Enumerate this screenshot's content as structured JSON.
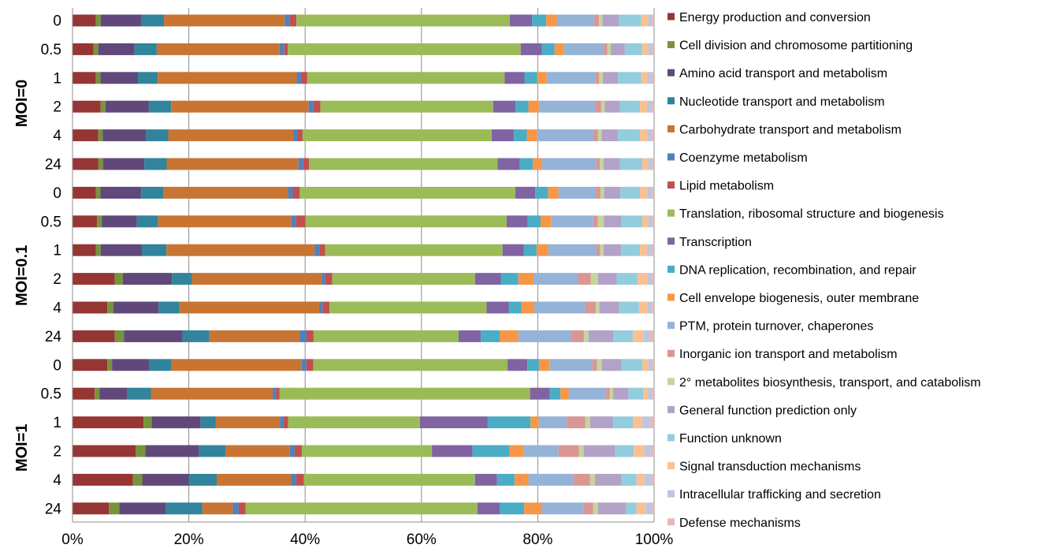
{
  "chart_data": {
    "type": "bar",
    "orientation": "horizontal",
    "stacked": true,
    "normalized": true,
    "xlim": [
      0,
      100
    ],
    "x_ticks": [
      "0%",
      "20%",
      "40%",
      "60%",
      "80%",
      "100%"
    ],
    "grid": "vertical",
    "legend_position": "right",
    "groups": [
      {
        "label": "MOI=0",
        "categories": [
          "0",
          "0.5",
          "1",
          "2",
          "4",
          "24"
        ]
      },
      {
        "label": "MOI=0.1",
        "categories": [
          "0",
          "0.5",
          "1",
          "2",
          "4",
          "24"
        ]
      },
      {
        "label": "MOI=1",
        "categories": [
          "0",
          "0.5",
          "1",
          "2",
          "4",
          "24"
        ]
      }
    ],
    "series": [
      {
        "name": "Energy production and conversion",
        "color": "#963634",
        "values": [
          4.0,
          3.6,
          4.0,
          4.8,
          4.4,
          4.4,
          4.0,
          4.2,
          4.0,
          7.2,
          6.0,
          7.2,
          6.0,
          3.8,
          12.2,
          10.6,
          10.4,
          6.2
        ]
      },
      {
        "name": "Cell division and chromosome partitioning",
        "color": "#77933C",
        "values": [
          0.8,
          0.8,
          0.8,
          0.8,
          0.8,
          0.8,
          0.8,
          0.8,
          0.8,
          1.4,
          1.0,
          1.6,
          0.8,
          0.8,
          1.4,
          1.6,
          1.6,
          1.8
        ]
      },
      {
        "name": "Amino acid transport and metabolism",
        "color": "#60497A",
        "values": [
          7.0,
          6.2,
          6.4,
          7.4,
          7.4,
          7.0,
          7.0,
          6.0,
          7.0,
          8.4,
          7.8,
          10.0,
          6.4,
          4.8,
          8.4,
          9.0,
          8.0,
          8.0
        ]
      },
      {
        "name": "Nucleotide transport and metabolism",
        "color": "#31849B",
        "values": [
          3.8,
          3.8,
          3.4,
          3.8,
          3.8,
          3.8,
          3.8,
          3.6,
          4.2,
          3.4,
          3.6,
          4.6,
          3.8,
          4.0,
          2.6,
          4.4,
          4.8,
          6.2
        ]
      },
      {
        "name": "Carbohydrate transport and metabolism",
        "color": "#C87533",
        "values": [
          20.6,
          21.0,
          23.8,
          23.4,
          21.4,
          22.4,
          21.4,
          22.8,
          25.2,
          22.2,
          24.0,
          15.4,
          22.4,
          20.8,
          11.0,
          10.8,
          12.8,
          5.2
        ]
      },
      {
        "name": "Coenzyme metabolism",
        "color": "#4F81BD",
        "values": [
          0.8,
          0.8,
          0.8,
          0.8,
          0.8,
          0.8,
          0.8,
          0.8,
          0.8,
          0.6,
          0.6,
          1.2,
          0.8,
          0.6,
          0.6,
          0.8,
          0.8,
          1.0
        ]
      },
      {
        "name": "Lipid metabolism",
        "color": "#C0504D",
        "values": [
          1.2,
          0.6,
          1.0,
          1.2,
          0.8,
          1.0,
          1.2,
          1.6,
          1.0,
          1.2,
          1.2,
          1.2,
          1.2,
          0.6,
          0.8,
          1.2,
          1.4,
          1.2
        ]
      },
      {
        "name": "Translation, ribosomal structure and biogenesis",
        "color": "#9BBB59",
        "values": [
          36.4,
          39.8,
          33.8,
          29.4,
          32.4,
          32.0,
          37.0,
          34.4,
          30.2,
          24.4,
          27.0,
          24.8,
          33.4,
          42.8,
          22.6,
          21.8,
          29.4,
          39.6
        ]
      },
      {
        "name": "Transcription",
        "color": "#8064A2",
        "values": [
          3.8,
          3.6,
          3.4,
          3.8,
          3.8,
          3.8,
          3.4,
          3.6,
          3.6,
          4.4,
          3.8,
          3.8,
          3.4,
          3.4,
          11.6,
          6.8,
          3.8,
          3.8
        ]
      },
      {
        "name": "DNA replication, recombination, and repair",
        "color": "#4BACC6",
        "values": [
          2.4,
          2.2,
          2.2,
          2.2,
          2.2,
          2.2,
          2.2,
          2.2,
          2.2,
          3.0,
          2.2,
          3.2,
          2.0,
          1.8,
          7.4,
          6.2,
          3.0,
          4.2
        ]
      },
      {
        "name": "Cell envelope biogenesis, outer membrane",
        "color": "#F79646",
        "values": [
          1.8,
          1.6,
          1.6,
          1.8,
          1.8,
          1.6,
          1.8,
          1.8,
          2.0,
          2.6,
          2.2,
          3.2,
          1.8,
          1.4,
          1.4,
          2.4,
          2.4,
          3.0
        ]
      },
      {
        "name": "PTM, protein turnover, chaperones",
        "color": "#95B3D7",
        "values": [
          6.4,
          6.8,
          8.4,
          9.6,
          9.6,
          9.2,
          6.4,
          7.2,
          8.2,
          7.6,
          8.8,
          9.0,
          7.4,
          6.4,
          4.8,
          5.8,
          7.8,
          7.2
        ]
      },
      {
        "name": "Inorganic ion transport and metabolism",
        "color": "#D99694",
        "values": [
          0.8,
          0.6,
          0.6,
          1.0,
          0.8,
          0.6,
          0.8,
          0.8,
          0.6,
          2.2,
          1.8,
          2.2,
          0.8,
          0.6,
          3.2,
          3.4,
          2.8,
          1.6
        ]
      },
      {
        "name": "2° metabolites biosynthesis, transport, and catabolism",
        "color": "#C3D69B",
        "values": [
          0.6,
          0.6,
          0.6,
          0.6,
          0.6,
          0.6,
          0.6,
          1.0,
          0.6,
          1.2,
          0.6,
          0.8,
          0.8,
          0.6,
          0.8,
          0.8,
          0.8,
          0.8
        ]
      },
      {
        "name": "General function prediction only",
        "color": "#B3A2C7",
        "values": [
          2.8,
          2.4,
          2.6,
          2.6,
          2.8,
          2.8,
          2.8,
          3.0,
          3.0,
          3.2,
          3.4,
          4.2,
          3.4,
          2.6,
          4.0,
          5.2,
          4.6,
          4.8
        ]
      },
      {
        "name": "Function unknown",
        "color": "#93CDDD",
        "values": [
          3.8,
          3.0,
          4.0,
          3.4,
          3.8,
          3.8,
          3.4,
          3.6,
          3.2,
          3.6,
          3.4,
          3.4,
          3.6,
          2.6,
          3.4,
          3.2,
          2.6,
          1.8
        ]
      },
      {
        "name": "Signal transduction mechanisms",
        "color": "#FAC090",
        "values": [
          1.2,
          1.0,
          1.0,
          1.2,
          1.2,
          1.0,
          1.2,
          1.0,
          1.2,
          1.6,
          1.4,
          1.8,
          1.0,
          0.8,
          1.6,
          1.8,
          1.4,
          1.6
        ]
      },
      {
        "name": "Intracellular trafficking and secretion",
        "color": "#B9C7E4",
        "values": [
          0.6,
          0.6,
          0.8,
          0.8,
          0.8,
          0.6,
          0.8,
          0.6,
          0.8,
          0.8,
          0.8,
          1.0,
          0.6,
          0.6,
          1.2,
          1.0,
          1.0,
          1.0
        ]
      },
      {
        "name": "Defense mechanisms",
        "color": "#E6B9B8",
        "values": [
          0.4,
          0.4,
          0.4,
          0.4,
          0.4,
          0.4,
          0.4,
          0.4,
          0.4,
          0.4,
          0.4,
          0.8,
          0.4,
          0.4,
          0.8,
          0.6,
          0.6,
          0.4
        ]
      }
    ]
  }
}
